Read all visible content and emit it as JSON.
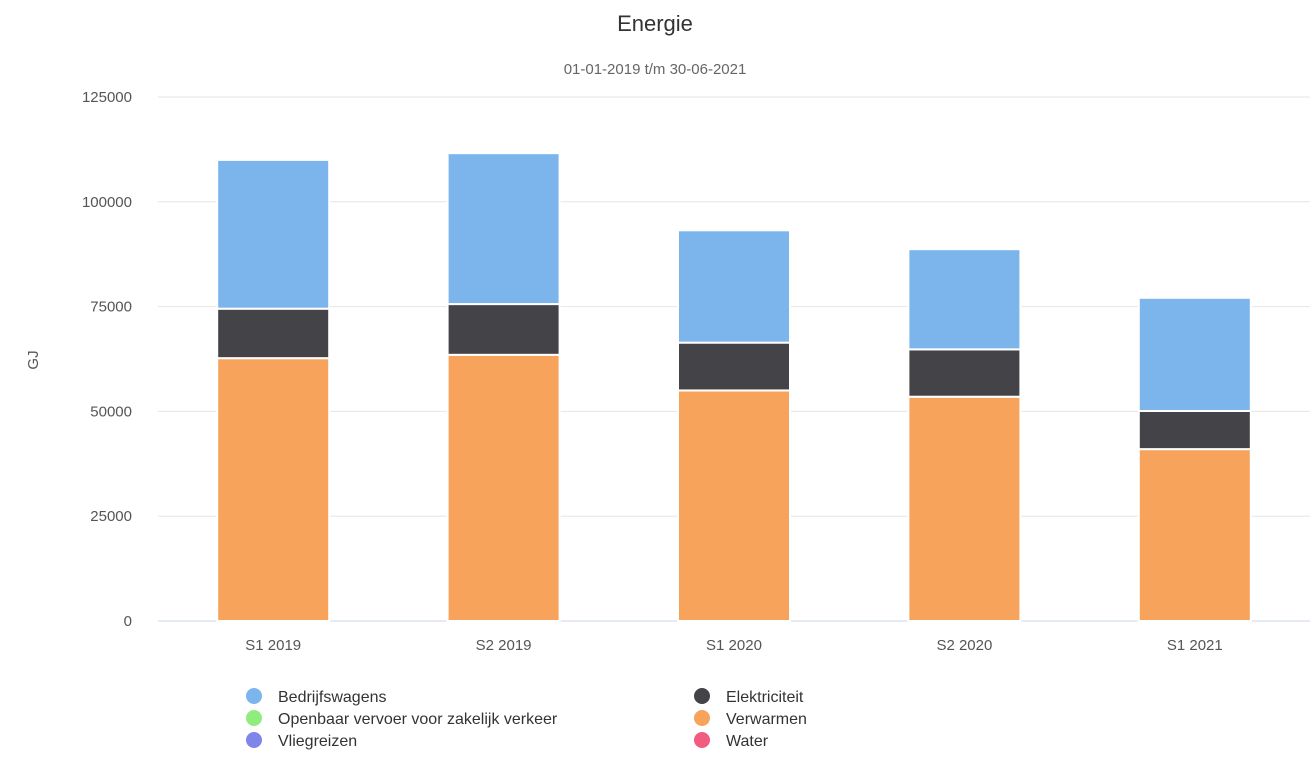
{
  "chart_data": {
    "type": "bar",
    "stacked": true,
    "title": "Energie",
    "subtitle": "01-01-2019 t/m 30-06-2021",
    "ylabel": "GJ",
    "ylim": [
      0,
      125000
    ],
    "yticks": [
      0,
      25000,
      50000,
      75000,
      100000,
      125000
    ],
    "grid": true,
    "legend_position": "bottom",
    "categories": [
      "S1 2019",
      "S2 2019",
      "S1 2020",
      "S2 2020",
      "S1 2021"
    ],
    "series": [
      {
        "name": "Verwarmen",
        "color": "#f7a35c",
        "values": [
          62700,
          63500,
          55000,
          53500,
          41000
        ]
      },
      {
        "name": "Elektriciteit",
        "color": "#434348",
        "values": [
          11800,
          12100,
          11400,
          11300,
          9100
        ]
      },
      {
        "name": "Openbaar vervoer voor zakelijk verkeer",
        "color": "#90ed7d",
        "values": [
          0,
          0,
          0,
          0,
          0
        ]
      },
      {
        "name": "Vliegreizen",
        "color": "#8085e9",
        "values": [
          0,
          0,
          0,
          0,
          0
        ]
      },
      {
        "name": "Water",
        "color": "#f15c80",
        "values": [
          0,
          0,
          0,
          0,
          0
        ]
      },
      {
        "name": "Bedrijfswagens",
        "color": "#7cb5ec",
        "values": [
          35500,
          36000,
          26800,
          23900,
          27000
        ]
      }
    ],
    "legend": [
      {
        "name": "Bedrijfswagens",
        "color": "#7cb5ec"
      },
      {
        "name": "Elektriciteit",
        "color": "#434348"
      },
      {
        "name": "Openbaar vervoer voor zakelijk verkeer",
        "color": "#90ed7d"
      },
      {
        "name": "Verwarmen",
        "color": "#f7a35c"
      },
      {
        "name": "Vliegreizen",
        "color": "#8085e9"
      },
      {
        "name": "Water",
        "color": "#f15c80"
      }
    ]
  }
}
